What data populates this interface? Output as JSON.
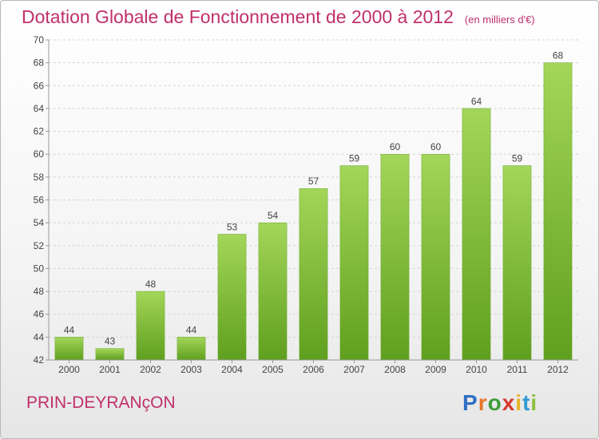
{
  "title": "Dotation Globale de Fonctionnement de 2000 à 2012",
  "subtitle": "(en milliers d'€)",
  "city": "PRIN-DEYRANçON",
  "brand": {
    "text": "Proxiti",
    "letters": [
      "P",
      "r",
      "o",
      "x",
      "i",
      "t",
      "i"
    ],
    "colors": [
      "#2f6fc2",
      "#e8762a",
      "#3f9b3a",
      "#d8382f",
      "#e8b42a",
      "#2f9bd1",
      "#8bbf3a"
    ]
  },
  "colors": {
    "bar": "#7cc13a",
    "bar_light": "#a3d65a",
    "bar_dark": "#5f9f1f",
    "title": "#c0306a"
  },
  "chart_data": {
    "type": "bar",
    "categories": [
      "2000",
      "2001",
      "2002",
      "2003",
      "2004",
      "2005",
      "2006",
      "2007",
      "2008",
      "2009",
      "2010",
      "2011",
      "2012"
    ],
    "values": [
      44,
      43,
      48,
      44,
      53,
      54,
      57,
      59,
      60,
      60,
      64,
      59,
      68
    ],
    "data_labels": [
      "44",
      "43",
      "48",
      "44",
      "53",
      "54",
      "57",
      "59",
      "60",
      "60",
      "64",
      "59",
      "68"
    ],
    "yticks": [
      "42",
      "44",
      "46",
      "48",
      "50",
      "52",
      "54",
      "56",
      "58",
      "60",
      "62",
      "64",
      "66",
      "68",
      "70"
    ],
    "ylim": [
      42,
      70
    ],
    "grid": true
  }
}
